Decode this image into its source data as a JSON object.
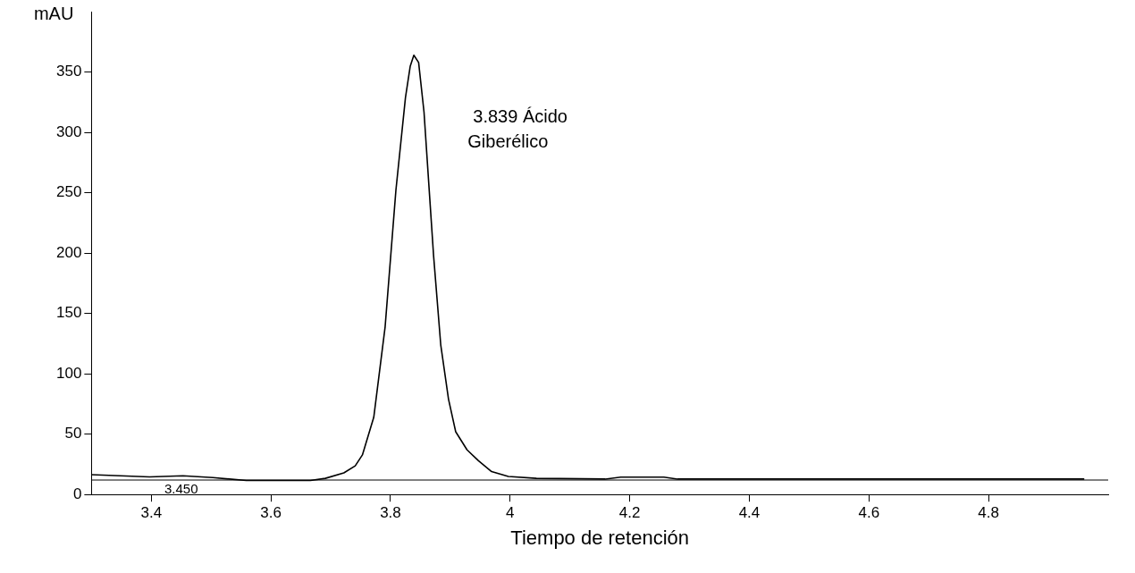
{
  "chart_data": {
    "type": "line",
    "xlabel": "Tiempo de retención",
    "ylabel": "mAU",
    "xlim": [
      3.3,
      5.0
    ],
    "xticks": [
      3.4,
      3.6,
      3.8,
      4,
      4.2,
      4.4,
      4.6,
      4.8
    ],
    "ylim": [
      0,
      400
    ],
    "yticks": [
      0,
      50,
      100,
      150,
      200,
      250,
      300,
      350
    ],
    "grid": false,
    "legend": false,
    "marker": "none",
    "line_style": "solid",
    "series": [
      {
        "color": "#000000",
        "x": [
          3.3,
          3.397,
          3.453,
          3.503,
          3.559,
          3.666,
          3.691,
          3.722,
          3.741,
          3.753,
          3.772,
          3.791,
          3.809,
          3.825,
          3.833,
          3.839,
          3.847,
          3.856,
          3.872,
          3.884,
          3.897,
          3.909,
          3.928,
          3.947,
          3.969,
          3.997,
          4.044,
          4.159,
          4.185,
          4.257,
          4.28,
          4.96
        ],
        "values": [
          16.4,
          14.6,
          15.5,
          14,
          11.6,
          11.6,
          13.4,
          17.9,
          23.8,
          32.8,
          64,
          139,
          252,
          329,
          355,
          364,
          358,
          317,
          198,
          124,
          79,
          52,
          37,
          28,
          19,
          15,
          13.4,
          12.8,
          14.4,
          14.4,
          12.8,
          12.8
        ]
      }
    ],
    "ref_lines": [
      {
        "axis": "y",
        "value": 12,
        "color": "#000000",
        "line_style": "solid"
      }
    ],
    "annotations": [
      "3.839 Ácido\nGiberélico",
      {
        "text": "3.450",
        "x": 3.45,
        "y": 12
      }
    ]
  }
}
